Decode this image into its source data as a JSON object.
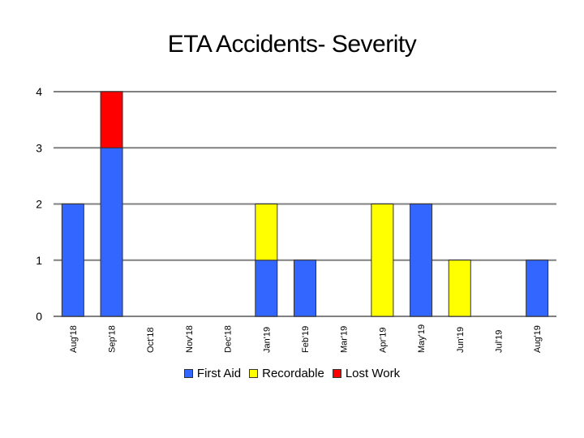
{
  "chart_data": {
    "type": "bar",
    "stacked": true,
    "title": "ETA Accidents- Severity",
    "xlabel": "",
    "ylabel": "",
    "ylim": [
      0,
      4
    ],
    "yticks": [
      0,
      1,
      2,
      3,
      4
    ],
    "categories": [
      "Aug'18",
      "Sep'18",
      "Oct'18",
      "Nov'18",
      "Dec'18",
      "Jan'19",
      "Feb'19",
      "Mar'19",
      "Apr'19",
      "May'19",
      "Jun'19",
      "Jul'19",
      "Aug'19"
    ],
    "series": [
      {
        "name": "First Aid",
        "color": "#3366ff",
        "values": [
          2,
          3,
          0,
          0,
          0,
          1,
          1,
          0,
          0,
          2,
          0,
          0,
          1
        ]
      },
      {
        "name": "Recordable",
        "color": "#ffff00",
        "values": [
          0,
          0,
          0,
          0,
          0,
          1,
          0,
          0,
          2,
          0,
          1,
          0,
          0
        ]
      },
      {
        "name": "Lost Work",
        "color": "#ff0000",
        "values": [
          0,
          1,
          0,
          0,
          0,
          0,
          0,
          0,
          0,
          0,
          0,
          0,
          0
        ]
      }
    ],
    "grid": true,
    "legend_position": "bottom"
  }
}
